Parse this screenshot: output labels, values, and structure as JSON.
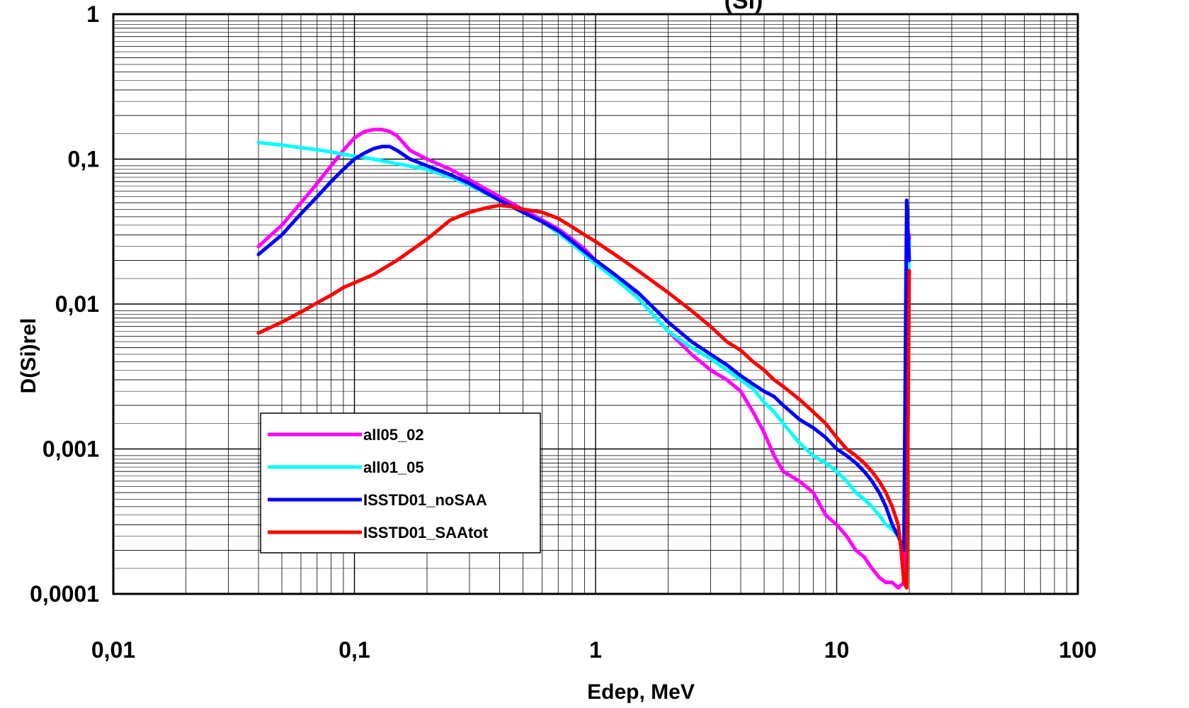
{
  "chart_data": {
    "type": "line",
    "title": "(Si)",
    "xlabel": "Edep, MeV",
    "ylabel": "D(Si)rel",
    "x_scale": "log",
    "y_scale": "log",
    "xlim": [
      0.01,
      100
    ],
    "ylim": [
      0.0001,
      1
    ],
    "x_ticks": [
      "0,01",
      "0,1",
      "1",
      "10",
      "100"
    ],
    "y_ticks": [
      "0,0001",
      "0,001",
      "0,01",
      "0,1",
      "1"
    ],
    "grid": true,
    "legend_position": "lower-left",
    "series": [
      {
        "name": "all05_02",
        "color": "#ff00ff",
        "x": [
          0.04,
          0.05,
          0.06,
          0.07,
          0.08,
          0.09,
          0.1,
          0.11,
          0.12,
          0.13,
          0.14,
          0.15,
          0.17,
          0.2,
          0.25,
          0.3,
          0.4,
          0.5,
          0.6,
          0.7,
          0.8,
          0.9,
          1.0,
          1.2,
          1.5,
          2.0,
          2.5,
          3.0,
          3.5,
          4.0,
          4.5,
          5.0,
          5.5,
          6.0,
          7.0,
          8.0,
          9.0,
          10.0,
          11.0,
          12.0,
          13.0,
          14.0,
          15.0,
          16.0,
          17.0,
          18.0,
          19.0,
          19.5,
          20.0
        ],
        "y": [
          0.025,
          0.035,
          0.05,
          0.068,
          0.09,
          0.115,
          0.14,
          0.155,
          0.16,
          0.16,
          0.155,
          0.145,
          0.115,
          0.1,
          0.085,
          0.072,
          0.055,
          0.045,
          0.038,
          0.033,
          0.028,
          0.024,
          0.02,
          0.016,
          0.011,
          0.0065,
          0.0045,
          0.0035,
          0.003,
          0.0025,
          0.0018,
          0.0013,
          0.0009,
          0.0007,
          0.0006,
          0.0005,
          0.00035,
          0.0003,
          0.00025,
          0.0002,
          0.00018,
          0.00015,
          0.00013,
          0.00012,
          0.00012,
          0.00011,
          0.00012,
          0.01,
          0.03
        ]
      },
      {
        "name": "all01_05",
        "color": "#00ffff",
        "x": [
          0.04,
          0.05,
          0.06,
          0.07,
          0.08,
          0.09,
          0.1,
          0.12,
          0.15,
          0.2,
          0.25,
          0.3,
          0.4,
          0.5,
          0.6,
          0.7,
          0.8,
          0.9,
          1.0,
          1.2,
          1.5,
          2.0,
          2.5,
          3.0,
          3.5,
          4.0,
          4.5,
          5.0,
          5.5,
          6.0,
          7.0,
          8.0,
          9.0,
          10.0,
          11.0,
          12.0,
          13.0,
          14.0,
          15.0,
          16.0,
          17.0,
          18.0,
          19.0,
          19.5,
          20.0
        ],
        "y": [
          0.13,
          0.125,
          0.12,
          0.116,
          0.112,
          0.108,
          0.105,
          0.1,
          0.093,
          0.085,
          0.075,
          0.066,
          0.052,
          0.043,
          0.037,
          0.031,
          0.026,
          0.022,
          0.019,
          0.015,
          0.011,
          0.0065,
          0.005,
          0.0042,
          0.0035,
          0.003,
          0.0026,
          0.0021,
          0.0018,
          0.0015,
          0.0011,
          0.0009,
          0.0008,
          0.0007,
          0.0006,
          0.0005,
          0.00045,
          0.0004,
          0.00035,
          0.0003,
          0.00028,
          0.00025,
          0.0002,
          0.005,
          0.027
        ]
      },
      {
        "name": "ISSTD01_noSAA",
        "color": "#0000ff",
        "x": [
          0.04,
          0.05,
          0.06,
          0.07,
          0.08,
          0.09,
          0.1,
          0.11,
          0.12,
          0.13,
          0.14,
          0.15,
          0.17,
          0.2,
          0.25,
          0.3,
          0.4,
          0.5,
          0.6,
          0.7,
          0.8,
          0.9,
          1.0,
          1.2,
          1.5,
          2.0,
          2.5,
          3.0,
          3.5,
          4.0,
          4.5,
          5.0,
          5.5,
          6.0,
          7.0,
          8.0,
          9.0,
          10.0,
          11.0,
          12.0,
          13.0,
          14.0,
          15.0,
          16.0,
          17.0,
          18.0,
          19.0,
          19.5,
          20.0
        ],
        "y": [
          0.022,
          0.03,
          0.042,
          0.055,
          0.07,
          0.085,
          0.1,
          0.11,
          0.118,
          0.122,
          0.122,
          0.115,
          0.1,
          0.09,
          0.078,
          0.068,
          0.052,
          0.043,
          0.037,
          0.032,
          0.027,
          0.023,
          0.02,
          0.016,
          0.012,
          0.0075,
          0.0055,
          0.0045,
          0.0038,
          0.0032,
          0.0028,
          0.0025,
          0.0023,
          0.002,
          0.0016,
          0.0014,
          0.0012,
          0.001,
          0.0009,
          0.0008,
          0.0007,
          0.0006,
          0.0005,
          0.0004,
          0.0003,
          0.00025,
          0.0002,
          0.052,
          0.02
        ]
      },
      {
        "name": "ISSTD01_SAAtot",
        "color": "#ff0000",
        "x": [
          0.04,
          0.05,
          0.06,
          0.07,
          0.08,
          0.09,
          0.1,
          0.12,
          0.15,
          0.2,
          0.25,
          0.3,
          0.35,
          0.4,
          0.45,
          0.5,
          0.55,
          0.6,
          0.7,
          0.8,
          0.9,
          1.0,
          1.2,
          1.5,
          2.0,
          2.5,
          3.0,
          3.5,
          4.0,
          4.5,
          5.0,
          5.5,
          6.0,
          7.0,
          8.0,
          9.0,
          10.0,
          11.0,
          12.0,
          13.0,
          14.0,
          15.0,
          16.0,
          17.0,
          18.0,
          18.5,
          19.0,
          19.5,
          20.0
        ],
        "y": [
          0.0063,
          0.0075,
          0.0088,
          0.0102,
          0.0115,
          0.013,
          0.014,
          0.016,
          0.02,
          0.028,
          0.038,
          0.043,
          0.046,
          0.048,
          0.047,
          0.045,
          0.044,
          0.043,
          0.039,
          0.034,
          0.03,
          0.027,
          0.022,
          0.017,
          0.012,
          0.009,
          0.007,
          0.0055,
          0.0048,
          0.004,
          0.0035,
          0.003,
          0.0027,
          0.0022,
          0.0018,
          0.0015,
          0.0012,
          0.001,
          0.0009,
          0.0008,
          0.0007,
          0.0006,
          0.0005,
          0.0004,
          0.0003,
          0.0002,
          0.00012,
          0.00011,
          0.017
        ]
      }
    ]
  }
}
